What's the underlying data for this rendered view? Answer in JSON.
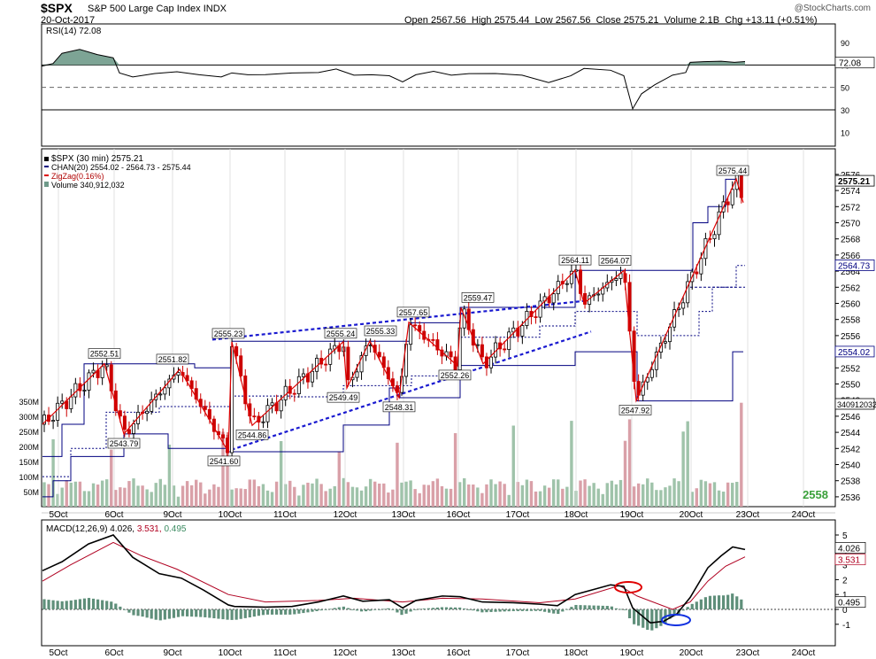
{
  "header": {
    "symbol": "$SPX",
    "name": "S&P 500 Large Cap Index",
    "exchange": "INDX",
    "date": "20-Oct-2017",
    "open_label": "Open",
    "open": "2567.56",
    "high_label": "High",
    "high": "2575.44",
    "low_label": "Low",
    "low": "2567.56",
    "close_label": "Close",
    "close": "2575.21",
    "volume_label": "Volume",
    "volume": "2.1B",
    "chg_label": "Chg",
    "chg": "+13.11 (+0.51%)",
    "brand": "@StockCharts.com"
  },
  "rsi": {
    "legend": "RSI(14) 72.08",
    "value_tag": "72.08",
    "levels": [
      "90",
      "70",
      "50",
      "30",
      "10"
    ]
  },
  "main": {
    "legend_price": "$SPX (30 min) 2575.21",
    "legend_chan": "CHAN(20) 2554.02 - 2564.73 - 2575.44",
    "legend_zigzag": "ZigZag(0.16%)",
    "legend_volume": "Volume 340,912,032",
    "price_ticks": [
      "2576",
      "2574",
      "2572",
      "2570",
      "2568",
      "2566",
      "2564",
      "2562",
      "2560",
      "2558",
      "2556",
      "2554",
      "2552",
      "2550",
      "2548",
      "2546",
      "2544",
      "2542",
      "2540",
      "2538",
      "2536"
    ],
    "volume_ticks": [
      "350M",
      "300M",
      "250M",
      "200M",
      "150M",
      "100M",
      "50M"
    ],
    "value_tags": {
      "close": "2575.21",
      "chan_mid": "2564.73",
      "chan_low": "2554.02",
      "volume": "340912032"
    },
    "corner_value": "2558"
  },
  "macd": {
    "legend_name": "MACD(12,26,9)",
    "legend_macd": "4.026,",
    "legend_signal": "3.531,",
    "legend_hist": "0.495",
    "ticks": [
      "5",
      "4",
      "3",
      "2",
      "1",
      "0",
      "-1"
    ],
    "value_tags": {
      "macd": "4.026",
      "signal": "3.531",
      "hist": "0.495"
    }
  },
  "x_labels": [
    "5Oct",
    "6Oct",
    "9Oct",
    "10Oct",
    "11Oct",
    "12Oct",
    "13Oct",
    "16Oct",
    "17Oct",
    "18Oct",
    "19Oct",
    "20Oct",
    "23Oct",
    "24Oct"
  ],
  "colors": {
    "up": "#000000",
    "down": "#cc0000",
    "zigzag": "#dd0000",
    "channel": "#000080",
    "trend": "#1a1ad0",
    "rsi_fill": "#6f9a8a",
    "vol_up": "#9fc3aa",
    "vol_down": "#d9a0a8",
    "macd": "#000000",
    "signal": "#b00020",
    "hist": "#5f8f7a"
  },
  "chart_data": {
    "type": "candlestick",
    "title": "$SPX S&P 500 Large Cap Index INDX",
    "interval": "30 min",
    "ylim": [
      2535,
      2577
    ],
    "annotations": [
      {
        "label": "2552.51",
        "value": 2552.51
      },
      {
        "label": "2543.79",
        "value": 2543.79
      },
      {
        "label": "2551.82",
        "value": 2551.82
      },
      {
        "label": "2541.60",
        "value": 2541.6
      },
      {
        "label": "2555.23",
        "value": 2555.23
      },
      {
        "label": "2544.86",
        "value": 2544.86
      },
      {
        "label": "2555.24",
        "value": 2555.24
      },
      {
        "label": "2549.49",
        "value": 2549.49
      },
      {
        "label": "2555.33",
        "value": 2555.33
      },
      {
        "label": "2548.31",
        "value": 2548.31
      },
      {
        "label": "2557.65",
        "value": 2557.65
      },
      {
        "label": "2552.26",
        "value": 2552.26
      },
      {
        "label": "2559.47",
        "value": 2559.47
      },
      {
        "label": "2564.11",
        "value": 2564.11
      },
      {
        "label": "2564.07",
        "value": 2564.07
      },
      {
        "label": "2547.92",
        "value": 2547.92
      },
      {
        "label": "2575.44",
        "value": 2575.44
      }
    ],
    "zigzag_points": [
      {
        "x": "5Oct",
        "y": 2545
      },
      {
        "x": "5Oct",
        "y": 2552.51
      },
      {
        "x": "6Oct",
        "y": 2543.79
      },
      {
        "x": "9Oct",
        "y": 2551.82
      },
      {
        "x": "10Oct",
        "y": 2541.6
      },
      {
        "x": "10Oct",
        "y": 2555.23
      },
      {
        "x": "10Oct",
        "y": 2544.86
      },
      {
        "x": "12Oct",
        "y": 2555.24
      },
      {
        "x": "12Oct",
        "y": 2549.49
      },
      {
        "x": "12Oct",
        "y": 2555.33
      },
      {
        "x": "13Oct",
        "y": 2548.31
      },
      {
        "x": "13Oct",
        "y": 2557.65
      },
      {
        "x": "16Oct",
        "y": 2552.26
      },
      {
        "x": "16Oct",
        "y": 2559.47
      },
      {
        "x": "17Oct",
        "y": 2552.5
      },
      {
        "x": "18Oct",
        "y": 2564.11
      },
      {
        "x": "18Oct",
        "y": 2560
      },
      {
        "x": "18Oct",
        "y": 2564.07
      },
      {
        "x": "19Oct",
        "y": 2547.92
      },
      {
        "x": "23Oct",
        "y": 2575.44
      },
      {
        "x": "23Oct",
        "y": 2572.5
      }
    ],
    "channel": {
      "low": 2554.02,
      "mid": 2564.73,
      "high": 2575.44
    },
    "rsi_last": 72.08,
    "macd_last": {
      "macd": 4.026,
      "signal": 3.531,
      "histogram": 0.495
    },
    "volume_last": 340912032
  }
}
